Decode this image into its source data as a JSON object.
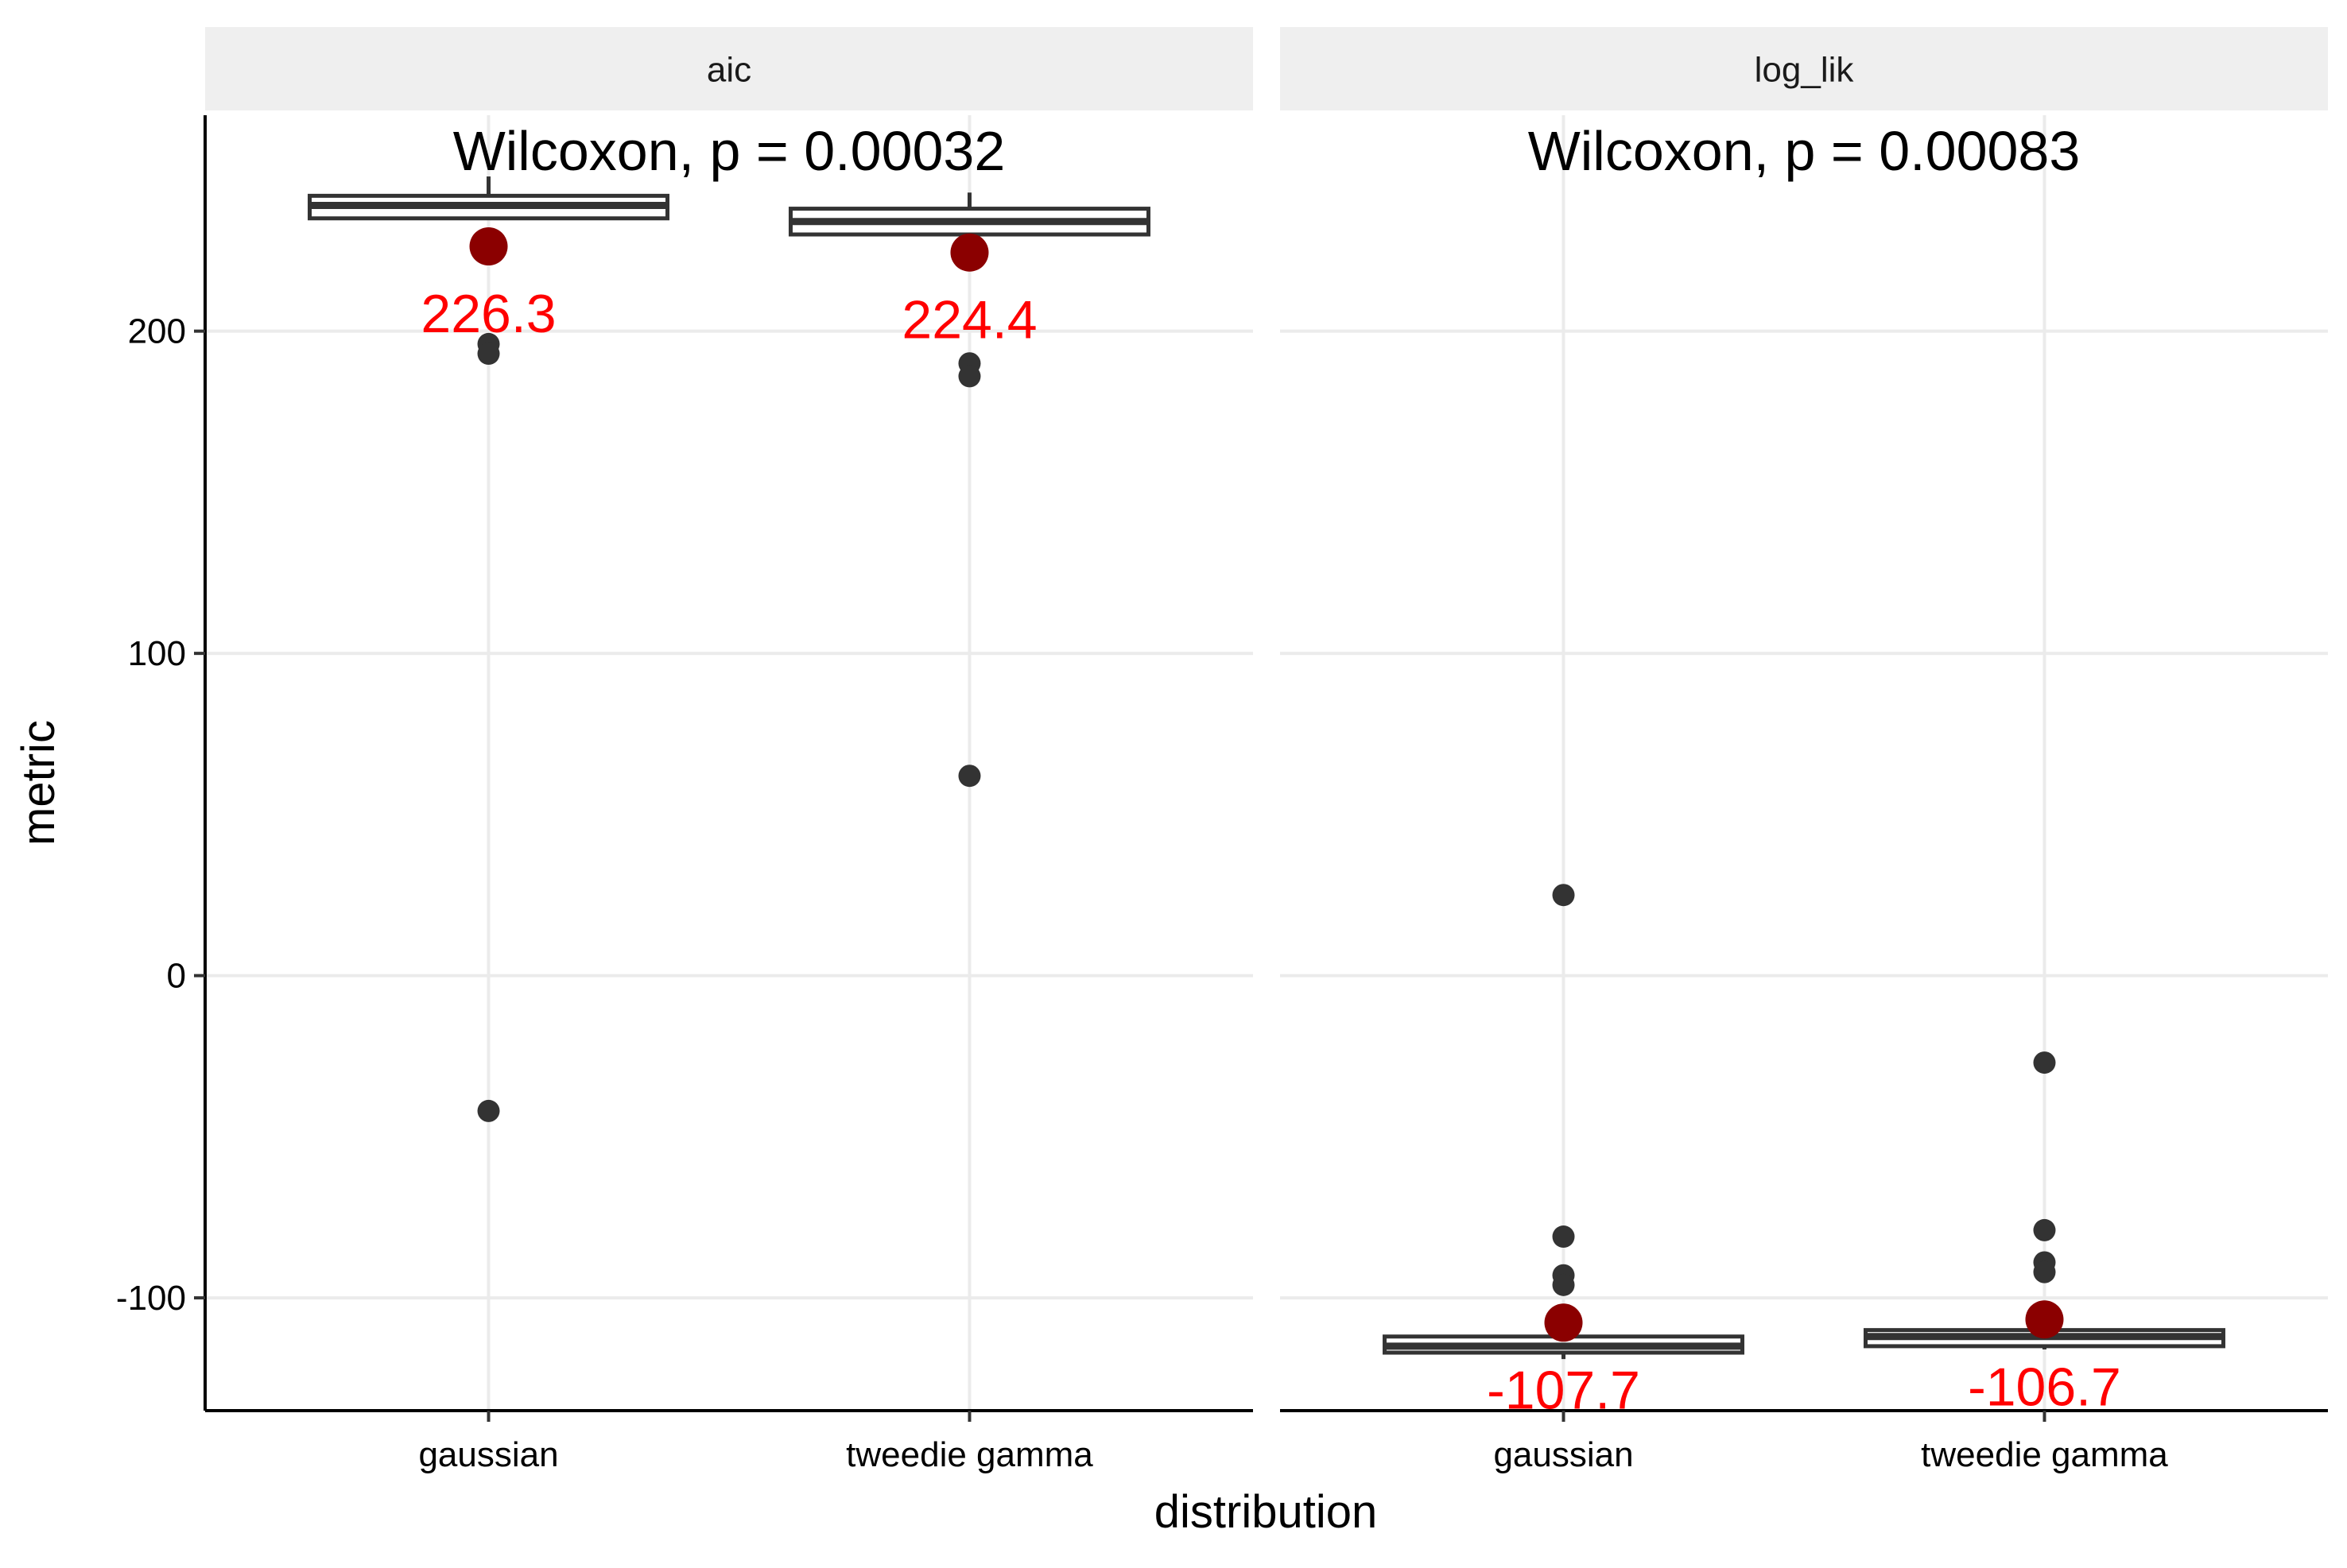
{
  "chart_data": {
    "type": "box",
    "xlabel": "distribution",
    "ylabel": "metric",
    "ylim": [
      -135,
      267
    ],
    "yticks": [
      -100,
      0,
      100,
      200
    ],
    "grid": true,
    "categories": [
      "gaussian",
      "tweedie gamma"
    ],
    "colors": {
      "box_stroke": "#333333",
      "outlier": "#333333",
      "mean_point": "#8b0000",
      "mean_label": "#ff0000",
      "grid": "#ebebeb",
      "strip_fill": "#efefef"
    },
    "panels": [
      {
        "strip": "aic",
        "test_label": "Wilcoxon, p = 0.00032",
        "groups": [
          {
            "category": "gaussian",
            "q1": 235,
            "median": 239,
            "q3": 242,
            "whisker_low": 235,
            "whisker_high": 248,
            "outliers": [
              196,
              193,
              -42
            ],
            "mean": 226.3,
            "mean_label": "226.3"
          },
          {
            "category": "tweedie gamma",
            "q1": 230,
            "median": 234,
            "q3": 238,
            "whisker_low": 230,
            "whisker_high": 243,
            "outliers": [
              190,
              186,
              62
            ],
            "mean": 224.4,
            "mean_label": "224.4"
          }
        ]
      },
      {
        "strip": "log_lik",
        "test_label": "Wilcoxon, p = 0.00083",
        "groups": [
          {
            "category": "gaussian",
            "q1": -117,
            "median": -115,
            "q3": -112,
            "whisker_low": -119,
            "whisker_high": -112,
            "outliers": [
              25,
              -81,
              -93,
              -96
            ],
            "mean": -107.7,
            "mean_label": "-107.7"
          },
          {
            "category": "tweedie gamma",
            "q1": -115,
            "median": -112,
            "q3": -110,
            "whisker_low": -116,
            "whisker_high": -110,
            "outliers": [
              -27,
              -79,
              -89,
              -92
            ],
            "mean": -106.7,
            "mean_label": "-106.7"
          }
        ]
      }
    ]
  }
}
